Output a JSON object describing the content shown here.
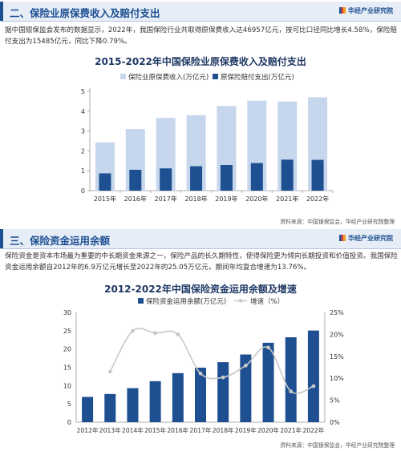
{
  "section1": {
    "title": "二、保险业原保费收入及赔付支出",
    "brand": "华经产业研究院",
    "paragraph": "据中国银保监会发布的数据显示，2022年，我国保险行业共取得原保费收入达46957亿元，按可比口径同比增长4.58%，保险赔付支出为15485亿元，同比下降0.79%。",
    "source": "资料来源：中国银保监会，华经产业研究院整理"
  },
  "section2": {
    "title": "三、保险资金运用余额",
    "brand": "华经产业研究院",
    "paragraph": "保险资金是资本市场最为重要的中长期资金来源之一，保险产品的长久期特性，使得保险更为倾向长期投资和价值投资。我国保险资金运用余额自2012年的6.9万亿元增长至2022年的25.05万亿元，期间年均复合增速为13.76%。",
    "source": "资料来源：中国银保监会，华经产业研究院整理"
  },
  "chart_data": [
    {
      "type": "bar",
      "title": "2015-2022年中国保险业原保费收入及赔付支出",
      "categories": [
        "2015年",
        "2016年",
        "2017年",
        "2018年",
        "2019年",
        "2020年",
        "2021年",
        "2022年"
      ],
      "series": [
        {
          "name": "保险业原保费收入(万亿元)",
          "values": [
            2.43,
            3.1,
            3.66,
            3.8,
            4.26,
            4.53,
            4.49,
            4.7
          ],
          "color": "#c6d6ec"
        },
        {
          "name": "原保险赔付支出(万亿元)",
          "values": [
            0.87,
            1.05,
            1.12,
            1.23,
            1.29,
            1.39,
            1.56,
            1.55
          ],
          "color": "#1d4f91"
        }
      ],
      "yticks": [
        "0",
        "1",
        "2",
        "3",
        "4",
        "5"
      ],
      "ylim": [
        0,
        5
      ],
      "legend": "top",
      "grid": false
    },
    {
      "type": "bar",
      "title": "2012-2022年中国保险资金运用余额及增速",
      "categories": [
        "2012年",
        "2013年",
        "2014年",
        "2015年",
        "2016年",
        "2017年",
        "2018年",
        "2019年",
        "2020年",
        "2021年",
        "2022年"
      ],
      "series": [
        {
          "name": "保险资金运用余额(万亿元)",
          "type": "bar",
          "axis": "left",
          "values": [
            6.9,
            7.7,
            9.3,
            11.2,
            13.4,
            14.9,
            16.4,
            18.5,
            21.7,
            23.2,
            25.05
          ],
          "color": "#1d4f91"
        },
        {
          "name": "增速（%）",
          "type": "line",
          "axis": "right",
          "values": [
            null,
            11.5,
            20.8,
            20.3,
            20.0,
            11.1,
            10.2,
            12.9,
            17.0,
            7.0,
            8.2
          ],
          "color": "#c8c8c8"
        }
      ],
      "yticks_left": [
        "0",
        "5",
        "10",
        "15",
        "20",
        "25",
        "30"
      ],
      "yticks_right": [
        "0%",
        "5%",
        "10%",
        "15%",
        "20%",
        "25%"
      ],
      "ylim_left": [
        0,
        30
      ],
      "ylim_right": [
        0,
        25
      ],
      "legend": "top",
      "grid": false
    }
  ]
}
